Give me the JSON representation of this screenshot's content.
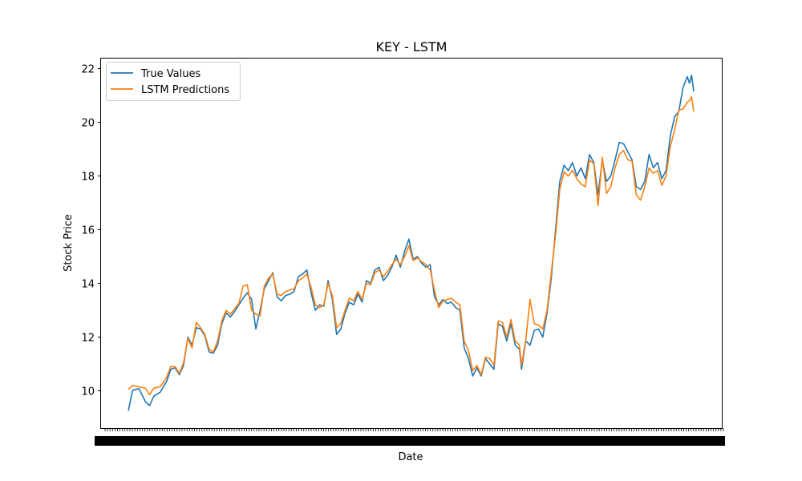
{
  "chart_data": {
    "type": "line",
    "title": "KEY - LSTM",
    "xlabel": "Date",
    "ylabel": "Stock Price",
    "ylim": [
      9.0,
      22.2
    ],
    "yticks": [
      10,
      12,
      14,
      16,
      18,
      20,
      22
    ],
    "grid": false,
    "legend_position": "top-left",
    "n_points": 250,
    "series": [
      {
        "name": "True Values",
        "color": "#1f77b4",
        "anchors": [
          [
            0,
            9.25
          ],
          [
            2,
            10.02
          ],
          [
            5,
            10.08
          ],
          [
            8,
            9.6
          ],
          [
            10,
            9.45
          ],
          [
            12,
            9.8
          ],
          [
            15,
            9.95
          ],
          [
            18,
            10.35
          ],
          [
            20,
            10.8
          ],
          [
            22,
            10.86
          ],
          [
            24,
            10.6
          ],
          [
            26,
            10.95
          ],
          [
            28,
            12.0
          ],
          [
            30,
            11.7
          ],
          [
            32,
            12.35
          ],
          [
            34,
            12.3
          ],
          [
            36,
            12.05
          ],
          [
            38,
            11.45
          ],
          [
            40,
            11.4
          ],
          [
            42,
            11.7
          ],
          [
            44,
            12.5
          ],
          [
            46,
            12.9
          ],
          [
            48,
            12.75
          ],
          [
            50,
            12.95
          ],
          [
            52,
            13.2
          ],
          [
            54,
            13.45
          ],
          [
            56,
            13.65
          ],
          [
            58,
            13.4
          ],
          [
            60,
            12.3
          ],
          [
            62,
            13.0
          ],
          [
            64,
            13.8
          ],
          [
            66,
            14.1
          ],
          [
            68,
            14.4
          ],
          [
            70,
            13.5
          ],
          [
            72,
            13.35
          ],
          [
            74,
            13.55
          ],
          [
            76,
            13.6
          ],
          [
            78,
            13.7
          ],
          [
            80,
            14.25
          ],
          [
            82,
            14.35
          ],
          [
            84,
            14.5
          ],
          [
            86,
            13.65
          ],
          [
            88,
            13.0
          ],
          [
            90,
            13.2
          ],
          [
            92,
            13.15
          ],
          [
            94,
            14.1
          ],
          [
            96,
            13.4
          ],
          [
            98,
            12.1
          ],
          [
            100,
            12.3
          ],
          [
            102,
            12.9
          ],
          [
            104,
            13.3
          ],
          [
            106,
            13.2
          ],
          [
            108,
            13.6
          ],
          [
            110,
            13.3
          ],
          [
            112,
            14.1
          ],
          [
            114,
            14.0
          ],
          [
            116,
            14.5
          ],
          [
            118,
            14.6
          ],
          [
            120,
            14.1
          ],
          [
            122,
            14.3
          ],
          [
            124,
            14.6
          ],
          [
            126,
            15.05
          ],
          [
            128,
            14.6
          ],
          [
            130,
            15.2
          ],
          [
            132,
            15.65
          ],
          [
            134,
            14.9
          ],
          [
            136,
            15.0
          ],
          [
            138,
            14.75
          ],
          [
            140,
            14.6
          ],
          [
            142,
            14.7
          ],
          [
            144,
            13.5
          ],
          [
            146,
            13.2
          ],
          [
            148,
            13.4
          ],
          [
            150,
            13.25
          ],
          [
            152,
            13.3
          ],
          [
            154,
            13.1
          ],
          [
            156,
            13.0
          ],
          [
            158,
            11.6
          ],
          [
            160,
            11.2
          ],
          [
            162,
            10.55
          ],
          [
            164,
            10.85
          ],
          [
            166,
            10.55
          ],
          [
            168,
            11.2
          ],
          [
            170,
            11.0
          ],
          [
            172,
            10.8
          ],
          [
            174,
            12.5
          ],
          [
            176,
            12.4
          ],
          [
            178,
            11.85
          ],
          [
            180,
            12.5
          ],
          [
            182,
            11.7
          ],
          [
            184,
            11.55
          ],
          [
            185,
            10.8
          ],
          [
            187,
            11.85
          ],
          [
            189,
            11.7
          ],
          [
            191,
            12.25
          ],
          [
            193,
            12.3
          ],
          [
            195,
            12.0
          ],
          [
            197,
            12.9
          ],
          [
            199,
            14.2
          ],
          [
            201,
            16.0
          ],
          [
            203,
            17.8
          ],
          [
            205,
            18.4
          ],
          [
            207,
            18.2
          ],
          [
            209,
            18.5
          ],
          [
            211,
            18.0
          ],
          [
            213,
            18.3
          ],
          [
            215,
            17.9
          ],
          [
            217,
            18.8
          ],
          [
            219,
            18.5
          ],
          [
            221,
            17.3
          ],
          [
            223,
            18.6
          ],
          [
            225,
            17.8
          ],
          [
            227,
            18.0
          ],
          [
            229,
            18.6
          ],
          [
            231,
            19.25
          ],
          [
            233,
            19.2
          ],
          [
            235,
            18.9
          ],
          [
            237,
            18.6
          ],
          [
            239,
            17.6
          ],
          [
            241,
            17.5
          ],
          [
            243,
            17.8
          ],
          [
            245,
            18.8
          ],
          [
            247,
            18.3
          ],
          [
            249,
            18.5
          ],
          [
            251,
            17.9
          ],
          [
            253,
            18.2
          ],
          [
            255,
            19.5
          ],
          [
            257,
            20.2
          ],
          [
            259,
            20.4
          ],
          [
            261,
            21.3
          ],
          [
            263,
            21.7
          ],
          [
            264,
            21.45
          ],
          [
            265,
            21.75
          ],
          [
            266,
            21.15
          ]
        ]
      },
      {
        "name": "LSTM Predictions",
        "color": "#ff7f0e",
        "anchors": [
          [
            0,
            10.05
          ],
          [
            2,
            10.2
          ],
          [
            5,
            10.15
          ],
          [
            8,
            10.1
          ],
          [
            10,
            9.85
          ],
          [
            12,
            10.1
          ],
          [
            15,
            10.15
          ],
          [
            18,
            10.5
          ],
          [
            20,
            10.9
          ],
          [
            22,
            10.9
          ],
          [
            24,
            10.65
          ],
          [
            26,
            11.05
          ],
          [
            28,
            11.95
          ],
          [
            30,
            11.6
          ],
          [
            32,
            12.55
          ],
          [
            34,
            12.35
          ],
          [
            36,
            12.1
          ],
          [
            38,
            11.55
          ],
          [
            40,
            11.45
          ],
          [
            42,
            11.85
          ],
          [
            44,
            12.6
          ],
          [
            46,
            13.0
          ],
          [
            48,
            12.85
          ],
          [
            50,
            13.05
          ],
          [
            52,
            13.25
          ],
          [
            54,
            13.9
          ],
          [
            56,
            13.95
          ],
          [
            58,
            13.0
          ],
          [
            60,
            12.85
          ],
          [
            62,
            12.8
          ],
          [
            64,
            13.9
          ],
          [
            66,
            14.2
          ],
          [
            68,
            14.35
          ],
          [
            70,
            13.6
          ],
          [
            72,
            13.55
          ],
          [
            74,
            13.7
          ],
          [
            76,
            13.75
          ],
          [
            78,
            13.8
          ],
          [
            80,
            14.1
          ],
          [
            82,
            14.2
          ],
          [
            84,
            14.35
          ],
          [
            86,
            13.85
          ],
          [
            88,
            13.2
          ],
          [
            90,
            13.1
          ],
          [
            92,
            13.2
          ],
          [
            94,
            14.0
          ],
          [
            96,
            13.55
          ],
          [
            98,
            12.35
          ],
          [
            100,
            12.5
          ],
          [
            102,
            13.0
          ],
          [
            104,
            13.45
          ],
          [
            106,
            13.35
          ],
          [
            108,
            13.7
          ],
          [
            110,
            13.4
          ],
          [
            112,
            14.0
          ],
          [
            114,
            13.95
          ],
          [
            116,
            14.4
          ],
          [
            118,
            14.5
          ],
          [
            120,
            14.25
          ],
          [
            122,
            14.45
          ],
          [
            124,
            14.7
          ],
          [
            126,
            14.9
          ],
          [
            128,
            14.7
          ],
          [
            130,
            15.0
          ],
          [
            132,
            15.4
          ],
          [
            134,
            14.85
          ],
          [
            136,
            14.95
          ],
          [
            138,
            14.8
          ],
          [
            140,
            14.7
          ],
          [
            142,
            14.5
          ],
          [
            144,
            13.75
          ],
          [
            146,
            13.1
          ],
          [
            148,
            13.35
          ],
          [
            150,
            13.4
          ],
          [
            152,
            13.45
          ],
          [
            154,
            13.3
          ],
          [
            156,
            13.2
          ],
          [
            158,
            11.85
          ],
          [
            160,
            11.5
          ],
          [
            162,
            10.75
          ],
          [
            164,
            10.95
          ],
          [
            166,
            10.6
          ],
          [
            168,
            11.25
          ],
          [
            170,
            11.2
          ],
          [
            172,
            10.95
          ],
          [
            174,
            12.6
          ],
          [
            176,
            12.55
          ],
          [
            178,
            12.0
          ],
          [
            180,
            12.65
          ],
          [
            182,
            11.85
          ],
          [
            184,
            11.7
          ],
          [
            185,
            10.95
          ],
          [
            187,
            11.9
          ],
          [
            189,
            13.4
          ],
          [
            191,
            12.5
          ],
          [
            193,
            12.45
          ],
          [
            195,
            12.3
          ],
          [
            197,
            13.0
          ],
          [
            199,
            14.4
          ],
          [
            201,
            15.8
          ],
          [
            203,
            17.5
          ],
          [
            205,
            18.15
          ],
          [
            207,
            18.0
          ],
          [
            209,
            18.2
          ],
          [
            211,
            17.9
          ],
          [
            213,
            17.7
          ],
          [
            215,
            17.6
          ],
          [
            217,
            18.6
          ],
          [
            219,
            18.45
          ],
          [
            221,
            16.9
          ],
          [
            223,
            18.7
          ],
          [
            225,
            17.35
          ],
          [
            227,
            17.6
          ],
          [
            229,
            18.3
          ],
          [
            231,
            18.8
          ],
          [
            233,
            18.95
          ],
          [
            235,
            18.6
          ],
          [
            237,
            18.55
          ],
          [
            239,
            17.3
          ],
          [
            241,
            17.1
          ],
          [
            243,
            17.6
          ],
          [
            245,
            18.3
          ],
          [
            247,
            18.1
          ],
          [
            249,
            18.2
          ],
          [
            251,
            17.65
          ],
          [
            253,
            18.0
          ],
          [
            255,
            19.1
          ],
          [
            257,
            19.7
          ],
          [
            259,
            20.45
          ],
          [
            261,
            20.5
          ],
          [
            263,
            20.75
          ],
          [
            264,
            20.8
          ],
          [
            265,
            20.95
          ],
          [
            266,
            20.4
          ]
        ]
      }
    ]
  }
}
